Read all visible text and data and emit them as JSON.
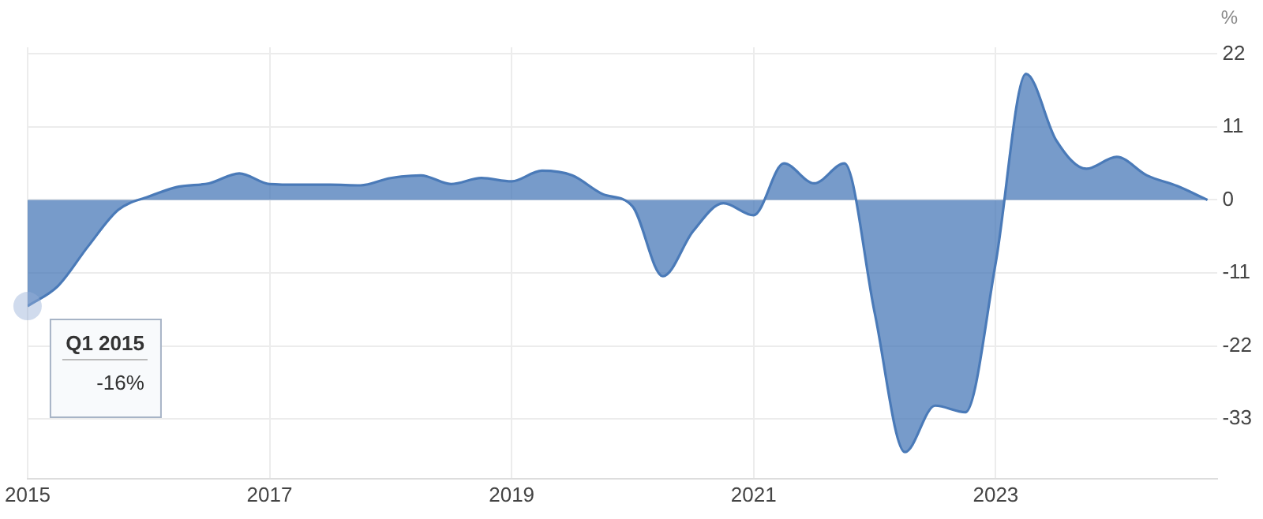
{
  "chart_data": {
    "type": "area",
    "ylabel": "%",
    "color": "#4a7ab8",
    "x": [
      "2015-01",
      "2015-04",
      "2015-07",
      "2015-10",
      "2016-01",
      "2016-04",
      "2016-07",
      "2016-10",
      "2017-01",
      "2017-04",
      "2017-07",
      "2017-10",
      "2018-01",
      "2018-04",
      "2018-07",
      "2018-10",
      "2019-01",
      "2019-04",
      "2019-07",
      "2019-10",
      "2020-01",
      "2020-04",
      "2020-07",
      "2020-10",
      "2021-01",
      "2021-04",
      "2021-07",
      "2021-10",
      "2022-01",
      "2022-04",
      "2022-07",
      "2022-10",
      "2023-01",
      "2023-04",
      "2023-07",
      "2023-10",
      "2024-01",
      "2024-04",
      "2024-07",
      "2024-10"
    ],
    "values": [
      -16,
      -13,
      -7,
      -1.5,
      0.5,
      2,
      2.5,
      4,
      2.4,
      2.3,
      2.3,
      2.2,
      3.3,
      3.7,
      2.4,
      3.3,
      2.8,
      4.4,
      3.7,
      0.9,
      -1,
      -11.5,
      -4.7,
      -0.5,
      -2.3,
      5.5,
      2.5,
      5.5,
      -17,
      -38,
      -31,
      -32,
      -9.5,
      19,
      9,
      4.7,
      6.5,
      3.7,
      2.1,
      0
    ],
    "xlim": [
      "2015-01",
      "2024-11"
    ],
    "xticks": [
      "2015",
      "2017",
      "2019",
      "2021",
      "2023"
    ],
    "ylim": [
      -42,
      23
    ],
    "yticks": [
      -33,
      -22,
      -11,
      0,
      11,
      22
    ],
    "grid": true,
    "marker": "none",
    "annotations": [
      {
        "text": "Q1 2015",
        "x": "2015-01",
        "y": -16
      },
      "-16%"
    ]
  }
}
